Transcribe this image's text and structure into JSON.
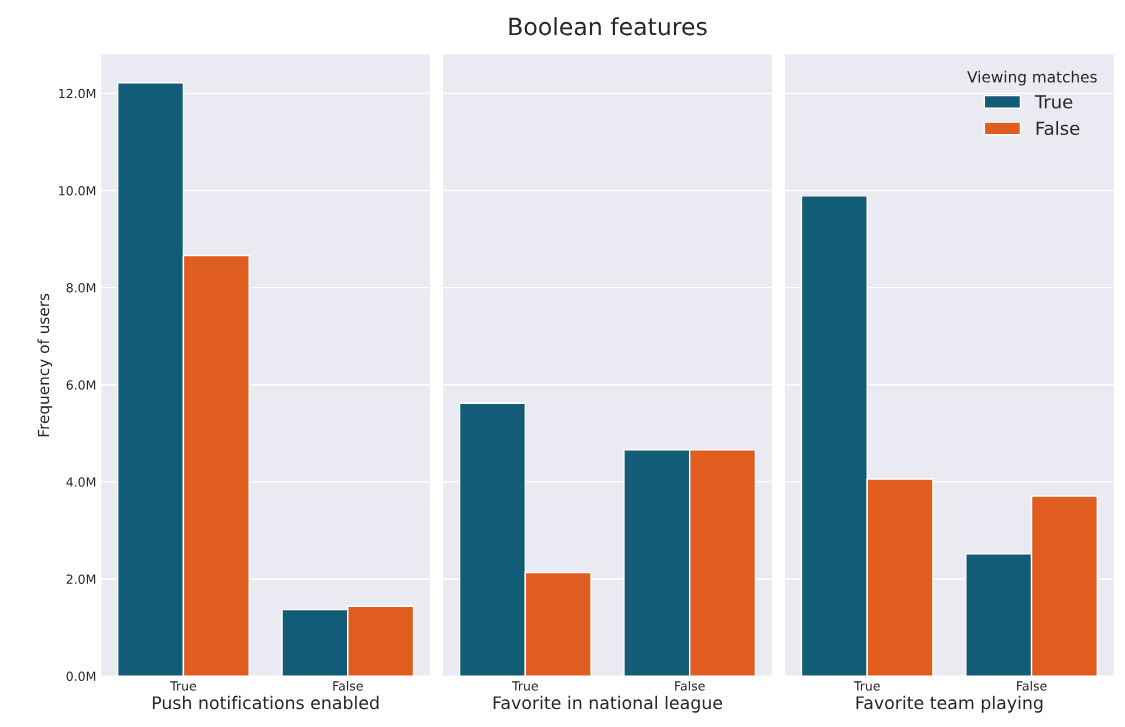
{
  "chart_data": [
    {
      "type": "bar",
      "xlabel": "Push notifications enabled",
      "ylabel": "Frequency of users",
      "categories": [
        "True",
        "False"
      ],
      "series": [
        {
          "color": "#135c78",
          "values": [
            12.22,
            1.37
          ]
        },
        {
          "color": "#e05d20",
          "values": [
            8.66,
            1.44
          ]
        }
      ],
      "ylim": [
        0,
        12.8
      ],
      "yticks": [
        {
          "value": 0,
          "label": "0.0M"
        },
        {
          "value": 2,
          "label": "2.0M"
        },
        {
          "value": 4,
          "label": "4.0M"
        },
        {
          "value": 6,
          "label": "6.0M"
        },
        {
          "value": 8,
          "label": "8.0M"
        },
        {
          "value": 10,
          "label": "10.0M"
        },
        {
          "value": 12,
          "label": "12.0M"
        }
      ],
      "grid": "y",
      "legend": false
    },
    {
      "type": "bar",
      "title": "Boolean features",
      "xlabel": "Favorite in national league",
      "categories": [
        "True",
        "False"
      ],
      "series": [
        {
          "color": "#135c78",
          "values": [
            5.62,
            4.66
          ]
        },
        {
          "color": "#e05d20",
          "values": [
            2.13,
            4.66
          ]
        }
      ],
      "ylim": [
        0,
        12.8
      ],
      "yticks": [
        0,
        2,
        4,
        6,
        8,
        10,
        12
      ],
      "tick_labels": "x",
      "grid": "y",
      "legend": false
    },
    {
      "type": "bar",
      "xlabel": "Favorite team playing",
      "legend_title": "Viewing matches",
      "categories": [
        "True",
        "False"
      ],
      "series": [
        {
          "name": "True",
          "color": "#135c78",
          "values": [
            9.89,
            2.52
          ]
        },
        {
          "name": "False",
          "color": "#e05d20",
          "values": [
            4.06,
            3.71
          ]
        }
      ],
      "ylim": [
        0,
        12.8
      ],
      "yticks": [
        0,
        2,
        4,
        6,
        8,
        10,
        12
      ],
      "tick_labels": "x",
      "grid": "y",
      "legend": "top right"
    }
  ]
}
